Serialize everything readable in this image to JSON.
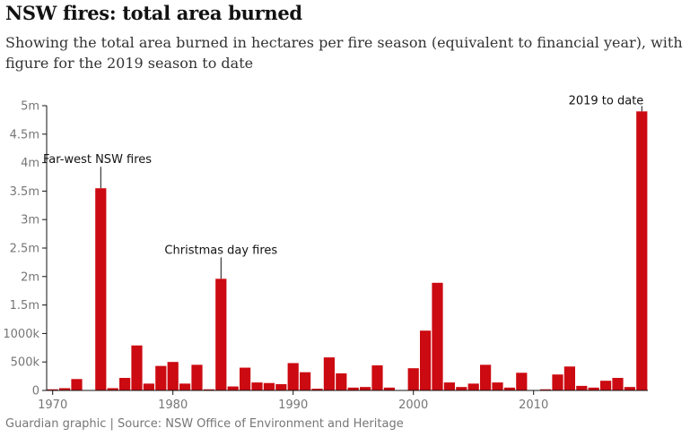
{
  "header": {
    "title": "NSW fires: total area burned",
    "subtitle": "Showing the total area burned in hectares per fire season (equivalent to financial year), with figure for the 2019 season to date"
  },
  "footer": {
    "source": "Guardian graphic | Source: NSW Office of Environment and Heritage"
  },
  "colors": {
    "bar": "#cc0a11",
    "axis": "#121212",
    "tick_text": "#767676"
  },
  "chart_data": {
    "type": "bar",
    "title": "NSW fires: total area burned",
    "xlabel": "",
    "ylabel": "",
    "ylim": [
      0,
      5000000
    ],
    "xlim": [
      1970,
      2019
    ],
    "grid": false,
    "y_ticks": [
      {
        "value": 0,
        "label": "0"
      },
      {
        "value": 500000,
        "label": "500k"
      },
      {
        "value": 1000000,
        "label": "1000k"
      },
      {
        "value": 1500000,
        "label": "1.5m"
      },
      {
        "value": 2000000,
        "label": "2m"
      },
      {
        "value": 2500000,
        "label": "2.5m"
      },
      {
        "value": 3000000,
        "label": "3m"
      },
      {
        "value": 3500000,
        "label": "3.5m"
      },
      {
        "value": 4000000,
        "label": "4m"
      },
      {
        "value": 4500000,
        "label": "4.5m"
      },
      {
        "value": 5000000,
        "label": "5m"
      }
    ],
    "x_ticks": [
      {
        "value": 1970,
        "label": "1970"
      },
      {
        "value": 1980,
        "label": "1980"
      },
      {
        "value": 1990,
        "label": "1990"
      },
      {
        "value": 2000,
        "label": "2000"
      },
      {
        "value": 2010,
        "label": "2010"
      }
    ],
    "x": [
      1970,
      1971,
      1972,
      1973,
      1974,
      1975,
      1976,
      1977,
      1978,
      1979,
      1980,
      1981,
      1982,
      1983,
      1984,
      1985,
      1986,
      1987,
      1988,
      1989,
      1990,
      1991,
      1992,
      1993,
      1994,
      1995,
      1996,
      1997,
      1998,
      1999,
      2000,
      2001,
      2002,
      2003,
      2004,
      2005,
      2006,
      2007,
      2008,
      2009,
      2010,
      2011,
      2012,
      2013,
      2014,
      2015,
      2016,
      2017,
      2018,
      2019
    ],
    "values": [
      20000,
      40000,
      200000,
      0,
      3550000,
      40000,
      220000,
      790000,
      120000,
      430000,
      500000,
      120000,
      450000,
      20000,
      1960000,
      70000,
      400000,
      140000,
      130000,
      110000,
      480000,
      320000,
      30000,
      580000,
      300000,
      50000,
      60000,
      440000,
      50000,
      0,
      390000,
      1050000,
      1890000,
      140000,
      60000,
      120000,
      450000,
      140000,
      50000,
      310000,
      0,
      20000,
      280000,
      420000,
      80000,
      50000,
      170000,
      220000,
      60000,
      4900000
    ],
    "annotations": [
      {
        "year": 1974,
        "label_year": 1967,
        "value": 3550000,
        "text": "Far-west NSW fires",
        "anchor": "start"
      },
      {
        "year": 1984,
        "label_year": 1984,
        "value": 1960000,
        "text": "Christmas day fires",
        "anchor": "middle"
      },
      {
        "year": 2019,
        "label_year": 2019,
        "value": 4900000,
        "text": "2019 to date",
        "anchor": "end"
      }
    ]
  }
}
